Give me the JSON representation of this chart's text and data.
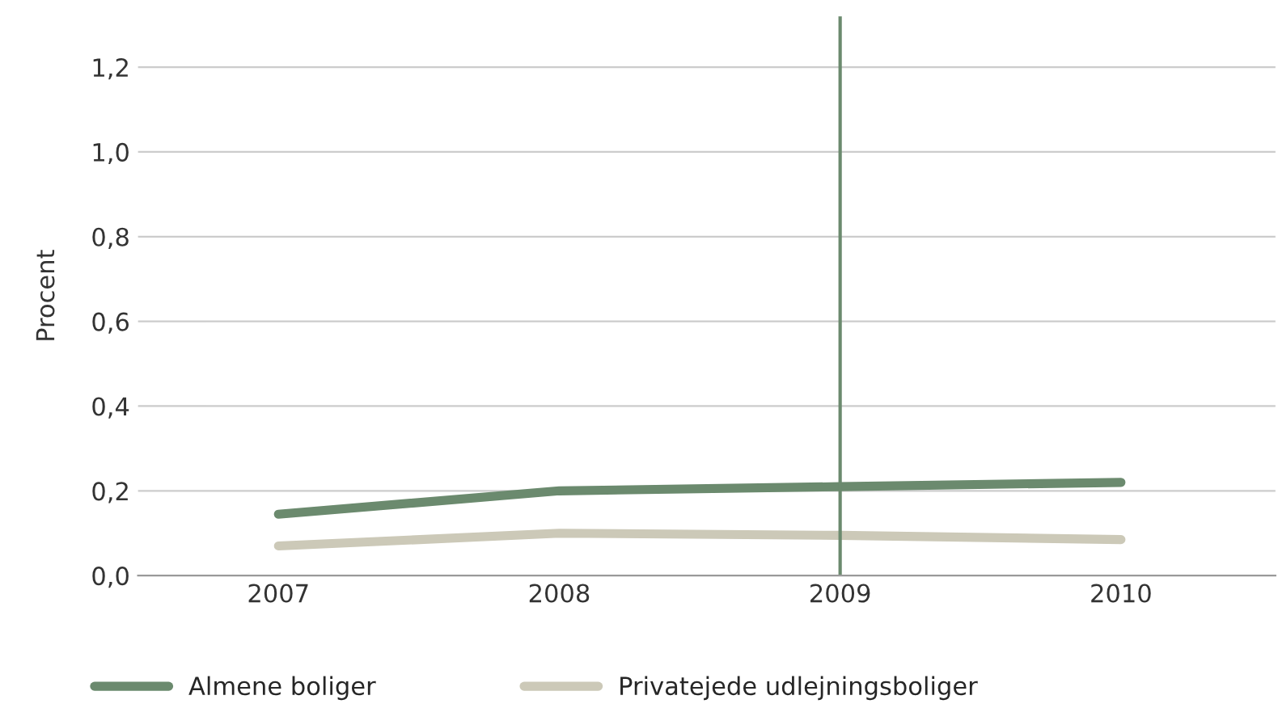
{
  "chart_data": {
    "type": "line",
    "ylabel": "Procent",
    "categories": [
      "2007",
      "2008",
      "2009",
      "2010"
    ],
    "series": [
      {
        "name": "Almene boliger",
        "color": "#6b8a6e",
        "values": [
          0.145,
          0.2,
          0.21,
          0.22
        ]
      },
      {
        "name": "Privatejede udlejningsboliger",
        "color": "#ccc9b8",
        "values": [
          0.07,
          0.1,
          0.095,
          0.085
        ]
      }
    ],
    "ref_lines": [
      {
        "axis": "x",
        "value": "2009",
        "color": "#6b8a6e"
      }
    ],
    "ylim": [
      0,
      1.32
    ],
    "yticks": [
      {
        "value": 0,
        "label": "0,0"
      },
      {
        "value": 0.2,
        "label": "0,2"
      },
      {
        "value": 0.4,
        "label": "0,4"
      },
      {
        "value": 0.6,
        "label": "0,6"
      },
      {
        "value": 0.8,
        "label": "0,8"
      },
      {
        "value": 1.0,
        "label": "1,0"
      },
      {
        "value": 1.2,
        "label": "1,2"
      }
    ],
    "grid": "y",
    "legend": "bottom",
    "marker": "none",
    "line_style": "solid"
  }
}
